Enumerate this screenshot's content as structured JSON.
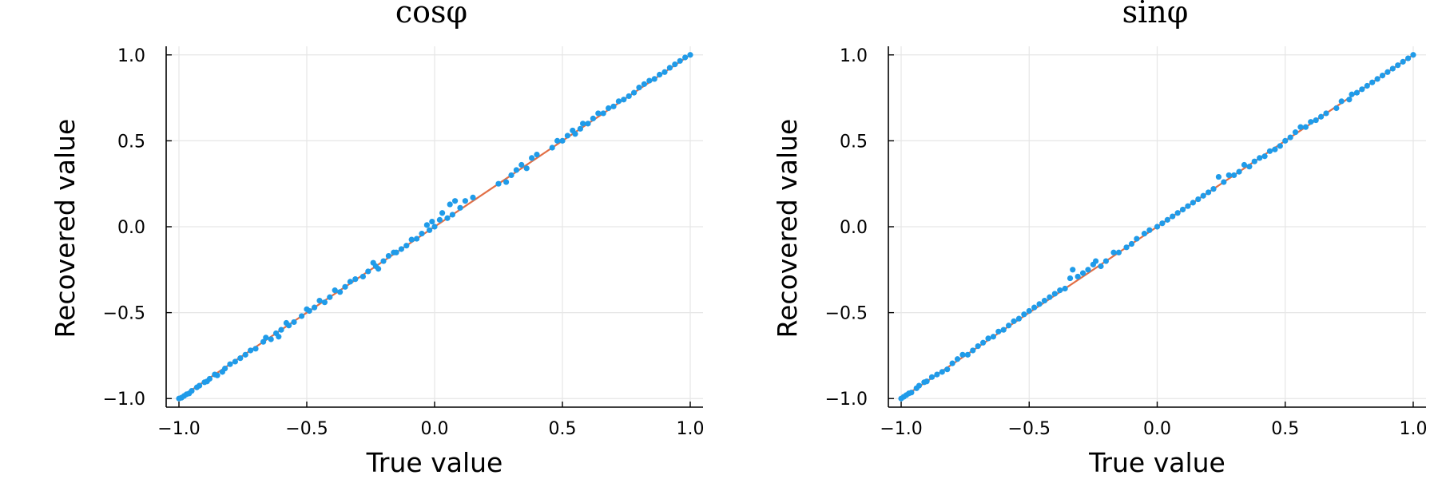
{
  "chart_data": [
    {
      "type": "scatter",
      "title": "cosφ",
      "xlabel": "True value",
      "ylabel": "Recovered value",
      "xlim": [
        -1.05,
        1.05
      ],
      "ylim": [
        -1.05,
        1.05
      ],
      "xticks": [
        -1.0,
        -0.5,
        0.0,
        0.5,
        1.0
      ],
      "yticks": [
        -1.0,
        -0.5,
        0.0,
        0.5,
        1.0
      ],
      "xtick_labels": [
        "−1.0",
        "−0.5",
        "0.0",
        "0.5",
        "1.0"
      ],
      "ytick_labels": [
        "−1.0",
        "−0.5",
        "0.0",
        "0.5",
        "1.0"
      ],
      "grid": true,
      "legend": "none",
      "colors": {
        "points": "#1f9be9",
        "line": "#e26f46"
      },
      "reference_line": {
        "x": [
          -1.0,
          1.0
        ],
        "y": [
          -1.0,
          1.0
        ]
      },
      "series": [
        {
          "points": [
            [
              -1.0,
              -1.0
            ],
            [
              -0.99,
              -0.995
            ],
            [
              -0.98,
              -0.985
            ],
            [
              -0.97,
              -0.975
            ],
            [
              -0.96,
              -0.97
            ],
            [
              -0.95,
              -0.955
            ],
            [
              -0.93,
              -0.935
            ],
            [
              -0.92,
              -0.925
            ],
            [
              -0.9,
              -0.905
            ],
            [
              -0.89,
              -0.9
            ],
            [
              -0.88,
              -0.885
            ],
            [
              -0.86,
              -0.86
            ],
            [
              -0.85,
              -0.865
            ],
            [
              -0.83,
              -0.845
            ],
            [
              -0.82,
              -0.825
            ],
            [
              -0.8,
              -0.8
            ],
            [
              -0.78,
              -0.785
            ],
            [
              -0.76,
              -0.765
            ],
            [
              -0.74,
              -0.745
            ],
            [
              -0.72,
              -0.72
            ],
            [
              -0.7,
              -0.71
            ],
            [
              -0.67,
              -0.67
            ],
            [
              -0.66,
              -0.645
            ],
            [
              -0.64,
              -0.655
            ],
            [
              -0.62,
              -0.62
            ],
            [
              -0.61,
              -0.64
            ],
            [
              -0.6,
              -0.6
            ],
            [
              -0.58,
              -0.56
            ],
            [
              -0.57,
              -0.575
            ],
            [
              -0.55,
              -0.555
            ],
            [
              -0.52,
              -0.52
            ],
            [
              -0.5,
              -0.48
            ],
            [
              -0.49,
              -0.49
            ],
            [
              -0.47,
              -0.47
            ],
            [
              -0.45,
              -0.43
            ],
            [
              -0.43,
              -0.44
            ],
            [
              -0.41,
              -0.41
            ],
            [
              -0.39,
              -0.37
            ],
            [
              -0.37,
              -0.38
            ],
            [
              -0.35,
              -0.35
            ],
            [
              -0.33,
              -0.32
            ],
            [
              -0.31,
              -0.305
            ],
            [
              -0.28,
              -0.29
            ],
            [
              -0.26,
              -0.26
            ],
            [
              -0.24,
              -0.21
            ],
            [
              -0.23,
              -0.23
            ],
            [
              -0.22,
              -0.245
            ],
            [
              -0.2,
              -0.2
            ],
            [
              -0.18,
              -0.17
            ],
            [
              -0.16,
              -0.15
            ],
            [
              -0.15,
              -0.15
            ],
            [
              -0.13,
              -0.13
            ],
            [
              -0.11,
              -0.11
            ],
            [
              -0.09,
              -0.075
            ],
            [
              -0.07,
              -0.07
            ],
            [
              -0.05,
              -0.04
            ],
            [
              -0.03,
              0.01
            ],
            [
              -0.02,
              -0.02
            ],
            [
              -0.01,
              0.03
            ],
            [
              0.0,
              0.0
            ],
            [
              0.02,
              0.04
            ],
            [
              0.03,
              0.08
            ],
            [
              0.05,
              0.05
            ],
            [
              0.06,
              0.13
            ],
            [
              0.07,
              0.07
            ],
            [
              0.08,
              0.15
            ],
            [
              0.1,
              0.11
            ],
            [
              0.12,
              0.15
            ],
            [
              0.15,
              0.17
            ],
            [
              0.25,
              0.25
            ],
            [
              0.28,
              0.26
            ],
            [
              0.3,
              0.3
            ],
            [
              0.32,
              0.33
            ],
            [
              0.34,
              0.36
            ],
            [
              0.36,
              0.34
            ],
            [
              0.38,
              0.4
            ],
            [
              0.4,
              0.42
            ],
            [
              0.46,
              0.46
            ],
            [
              0.48,
              0.5
            ],
            [
              0.5,
              0.5
            ],
            [
              0.52,
              0.53
            ],
            [
              0.54,
              0.56
            ],
            [
              0.55,
              0.54
            ],
            [
              0.57,
              0.57
            ],
            [
              0.58,
              0.6
            ],
            [
              0.6,
              0.6
            ],
            [
              0.62,
              0.63
            ],
            [
              0.64,
              0.66
            ],
            [
              0.66,
              0.66
            ],
            [
              0.68,
              0.69
            ],
            [
              0.7,
              0.7
            ],
            [
              0.72,
              0.73
            ],
            [
              0.74,
              0.74
            ],
            [
              0.76,
              0.76
            ],
            [
              0.78,
              0.78
            ],
            [
              0.8,
              0.81
            ],
            [
              0.82,
              0.83
            ],
            [
              0.84,
              0.85
            ],
            [
              0.86,
              0.86
            ],
            [
              0.88,
              0.885
            ],
            [
              0.9,
              0.9
            ],
            [
              0.92,
              0.925
            ],
            [
              0.94,
              0.945
            ],
            [
              0.96,
              0.965
            ],
            [
              0.98,
              0.985
            ],
            [
              1.0,
              1.0
            ]
          ]
        }
      ]
    },
    {
      "type": "scatter",
      "title": "sinφ",
      "xlabel": "True value",
      "ylabel": "Recovered value",
      "xlim": [
        -1.05,
        1.05
      ],
      "ylim": [
        -1.05,
        1.05
      ],
      "xticks": [
        -1.0,
        -0.5,
        0.0,
        0.5,
        1.0
      ],
      "yticks": [
        -1.0,
        -0.5,
        0.0,
        0.5,
        1.0
      ],
      "xtick_labels": [
        "−1.0",
        "−0.5",
        "0.0",
        "0.5",
        "1.0"
      ],
      "ytick_labels": [
        "−1.0",
        "−0.5",
        "0.0",
        "0.5",
        "1.0"
      ],
      "grid": true,
      "legend": "none",
      "colors": {
        "points": "#1f9be9",
        "line": "#e26f46"
      },
      "reference_line": {
        "x": [
          -1.0,
          1.0
        ],
        "y": [
          -1.0,
          1.0
        ]
      },
      "series": [
        {
          "points": [
            [
              -1.0,
              -1.0
            ],
            [
              -0.99,
              -0.99
            ],
            [
              -0.98,
              -0.98
            ],
            [
              -0.97,
              -0.97
            ],
            [
              -0.96,
              -0.965
            ],
            [
              -0.94,
              -0.94
            ],
            [
              -0.93,
              -0.925
            ],
            [
              -0.91,
              -0.905
            ],
            [
              -0.9,
              -0.9
            ],
            [
              -0.88,
              -0.875
            ],
            [
              -0.86,
              -0.86
            ],
            [
              -0.84,
              -0.845
            ],
            [
              -0.82,
              -0.83
            ],
            [
              -0.8,
              -0.795
            ],
            [
              -0.78,
              -0.77
            ],
            [
              -0.76,
              -0.745
            ],
            [
              -0.74,
              -0.745
            ],
            [
              -0.72,
              -0.72
            ],
            [
              -0.7,
              -0.695
            ],
            [
              -0.68,
              -0.675
            ],
            [
              -0.66,
              -0.65
            ],
            [
              -0.64,
              -0.64
            ],
            [
              -0.62,
              -0.61
            ],
            [
              -0.6,
              -0.6
            ],
            [
              -0.58,
              -0.575
            ],
            [
              -0.56,
              -0.55
            ],
            [
              -0.54,
              -0.535
            ],
            [
              -0.52,
              -0.51
            ],
            [
              -0.5,
              -0.49
            ],
            [
              -0.48,
              -0.47
            ],
            [
              -0.46,
              -0.45
            ],
            [
              -0.44,
              -0.43
            ],
            [
              -0.42,
              -0.41
            ],
            [
              -0.4,
              -0.39
            ],
            [
              -0.38,
              -0.37
            ],
            [
              -0.36,
              -0.36
            ],
            [
              -0.34,
              -0.3
            ],
            [
              -0.33,
              -0.25
            ],
            [
              -0.31,
              -0.29
            ],
            [
              -0.29,
              -0.27
            ],
            [
              -0.27,
              -0.25
            ],
            [
              -0.25,
              -0.22
            ],
            [
              -0.24,
              -0.2
            ],
            [
              -0.22,
              -0.23
            ],
            [
              -0.2,
              -0.2
            ],
            [
              -0.17,
              -0.15
            ],
            [
              -0.15,
              -0.15
            ],
            [
              -0.12,
              -0.12
            ],
            [
              -0.1,
              -0.1
            ],
            [
              -0.08,
              -0.07
            ],
            [
              -0.05,
              -0.04
            ],
            [
              -0.03,
              -0.02
            ],
            [
              0.0,
              0.0
            ],
            [
              0.02,
              0.02
            ],
            [
              0.04,
              0.04
            ],
            [
              0.06,
              0.06
            ],
            [
              0.08,
              0.08
            ],
            [
              0.1,
              0.1
            ],
            [
              0.12,
              0.12
            ],
            [
              0.14,
              0.14
            ],
            [
              0.16,
              0.16
            ],
            [
              0.18,
              0.18
            ],
            [
              0.2,
              0.2
            ],
            [
              0.22,
              0.22
            ],
            [
              0.24,
              0.29
            ],
            [
              0.26,
              0.26
            ],
            [
              0.28,
              0.3
            ],
            [
              0.3,
              0.3
            ],
            [
              0.32,
              0.32
            ],
            [
              0.34,
              0.36
            ],
            [
              0.36,
              0.35
            ],
            [
              0.38,
              0.38
            ],
            [
              0.4,
              0.4
            ],
            [
              0.42,
              0.41
            ],
            [
              0.44,
              0.44
            ],
            [
              0.46,
              0.45
            ],
            [
              0.48,
              0.47
            ],
            [
              0.5,
              0.5
            ],
            [
              0.52,
              0.52
            ],
            [
              0.54,
              0.55
            ],
            [
              0.56,
              0.58
            ],
            [
              0.58,
              0.58
            ],
            [
              0.6,
              0.61
            ],
            [
              0.62,
              0.62
            ],
            [
              0.64,
              0.64
            ],
            [
              0.66,
              0.66
            ],
            [
              0.7,
              0.69
            ],
            [
              0.72,
              0.73
            ],
            [
              0.75,
              0.74
            ],
            [
              0.76,
              0.77
            ],
            [
              0.78,
              0.78
            ],
            [
              0.8,
              0.8
            ],
            [
              0.82,
              0.82
            ],
            [
              0.84,
              0.84
            ],
            [
              0.86,
              0.86
            ],
            [
              0.88,
              0.88
            ],
            [
              0.9,
              0.9
            ],
            [
              0.92,
              0.92
            ],
            [
              0.94,
              0.94
            ],
            [
              0.96,
              0.96
            ],
            [
              0.98,
              0.98
            ],
            [
              1.0,
              1.0
            ]
          ]
        }
      ]
    }
  ]
}
